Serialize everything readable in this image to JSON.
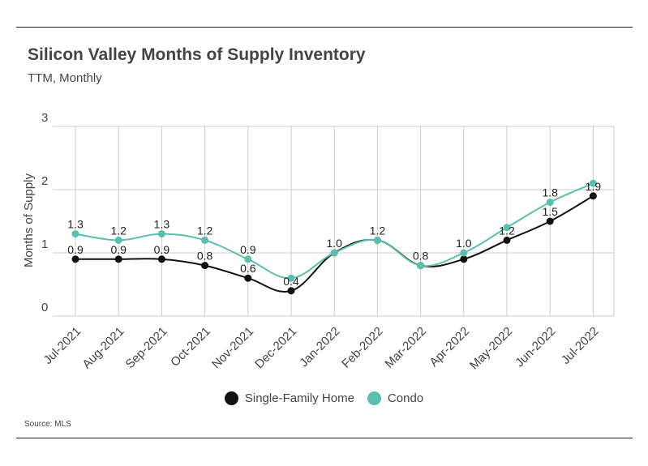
{
  "title": "Silicon Valley Months of Supply Inventory",
  "subtitle": "TTM, Monthly",
  "source": "Source:  MLS",
  "colors": {
    "sfh": "#111111",
    "condo": "#5bbfae",
    "grid": "#cccccc"
  },
  "chart_data": {
    "type": "line",
    "categories": [
      "Jul-2021",
      "Aug-2021",
      "Sep-2021",
      "Oct-2021",
      "Nov-2021",
      "Dec-2021",
      "Jan-2022",
      "Feb-2022",
      "Mar-2022",
      "Apr-2022",
      "May-2022",
      "Jun-2022",
      "Jul-2022"
    ],
    "series": [
      {
        "name": "Single-Family Home",
        "values": [
          0.9,
          0.9,
          0.9,
          0.8,
          0.6,
          0.4,
          1.0,
          1.2,
          0.8,
          0.9,
          1.2,
          1.5,
          1.9
        ]
      },
      {
        "name": "Condo",
        "values": [
          1.3,
          1.2,
          1.3,
          1.2,
          0.9,
          0.6,
          1.0,
          1.2,
          0.8,
          1.0,
          1.4,
          1.8,
          2.1
        ]
      }
    ],
    "data_labels": {
      "Single-Family Home": [
        "0.9",
        "0.9",
        "0.9",
        "0.8",
        "0.6",
        "0.4",
        "",
        "",
        "0.8",
        "",
        "1.2",
        "1.5",
        "1.9"
      ],
      "Condo": [
        "1.3",
        "1.2",
        "1.3",
        "1.2",
        "0.9",
        "",
        "1.0",
        "1.2",
        "",
        "1.0",
        "",
        "1.8",
        ""
      ]
    },
    "ylabel": "Months of Supply",
    "xlabel": "",
    "ylim": [
      0,
      3
    ],
    "yticks": [
      "0",
      "1",
      "2",
      "3"
    ],
    "grid": true,
    "legend_position": "bottom"
  }
}
